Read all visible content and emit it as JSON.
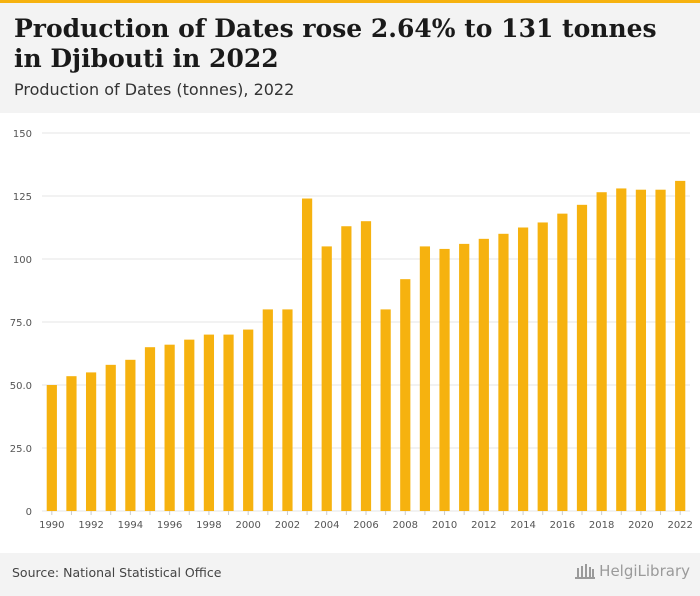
{
  "header": {
    "title": "Production of Dates rose 2.64% to 131 tonnes in Djibouti in 2022",
    "subtitle": "Production of Dates (tonnes), 2022"
  },
  "footer": {
    "source": "Source: National Statistical Office",
    "brand": "HelgiLibrary"
  },
  "colors": {
    "bar": "#f6b20f",
    "accent": "#f6b20f",
    "grid": "#e6e6e6",
    "header_bg": "#f3f3f3"
  },
  "chart_data": {
    "type": "bar",
    "title": "Production of Dates rose 2.64% to 131 tonnes in Djibouti in 2022",
    "subtitle": "Production of Dates (tonnes), 2022",
    "xlabel": "",
    "ylabel": "",
    "ylim": [
      0,
      150
    ],
    "y_ticks": [
      0,
      25,
      50,
      75,
      100,
      125,
      150
    ],
    "y_tick_labels": [
      "0",
      "25.0",
      "50.0",
      "75.0",
      "100",
      "125",
      "150"
    ],
    "grid": true,
    "legend": "none",
    "categories": [
      "1990",
      "1991",
      "1992",
      "1993",
      "1994",
      "1995",
      "1996",
      "1997",
      "1998",
      "1999",
      "2000",
      "2001",
      "2002",
      "2003",
      "2004",
      "2005",
      "2006",
      "2007",
      "2008",
      "2009",
      "2010",
      "2011",
      "2012",
      "2013",
      "2014",
      "2015",
      "2016",
      "2017",
      "2018",
      "2019",
      "2020",
      "2021",
      "2022"
    ],
    "x_tick_labels": [
      "1990",
      "1992",
      "1994",
      "1996",
      "1998",
      "2000",
      "2002",
      "2004",
      "2006",
      "2008",
      "2010",
      "2012",
      "2014",
      "2016",
      "2018",
      "2020",
      "2022"
    ],
    "values": [
      50,
      53.5,
      55,
      58,
      60,
      65,
      66,
      68,
      70,
      70,
      72,
      80,
      80,
      124,
      105,
      113,
      115,
      80,
      92,
      105,
      104,
      106,
      108,
      110,
      112.5,
      114.5,
      118,
      121.5,
      126.5,
      128,
      127.5,
      127.5,
      131
    ]
  }
}
